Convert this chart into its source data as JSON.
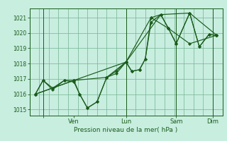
{
  "bg_color": "#c8eee0",
  "grid_color": "#7ab898",
  "line_color": "#1a5c1a",
  "marker_color": "#1a5c1a",
  "xlabel": "Pression niveau de la mer( hPa )",
  "ylim": [
    1014.6,
    1021.6
  ],
  "yticks": [
    1015,
    1016,
    1017,
    1018,
    1019,
    1020,
    1021
  ],
  "xlim": [
    0,
    100
  ],
  "xtick_positions": [
    7,
    23,
    50,
    76,
    95
  ],
  "xtick_labels": [
    "",
    "Ven",
    "Lun",
    "Sam",
    "Dim"
  ],
  "series": [
    [
      3,
      1016.0,
      7,
      1016.9,
      12,
      1016.4,
      18,
      1016.9,
      23,
      1016.8,
      26,
      1016.0,
      30,
      1015.1,
      35,
      1015.5,
      40,
      1017.1,
      45,
      1017.5,
      50,
      1018.1,
      53,
      1017.5,
      57,
      1017.6,
      60,
      1018.3,
      63,
      1021.0,
      68,
      1021.2,
      72,
      1020.3,
      76,
      1019.3,
      83,
      1021.3,
      88,
      1019.1,
      93,
      1019.9,
      97,
      1019.85
    ],
    [
      3,
      1016.0,
      7,
      1016.9,
      12,
      1016.3,
      18,
      1016.9,
      23,
      1016.9,
      26,
      1016.0,
      30,
      1015.1,
      35,
      1015.5,
      40,
      1017.1,
      45,
      1017.35,
      50,
      1018.1,
      53,
      1017.5,
      57,
      1017.6,
      60,
      1018.3,
      63,
      1020.7,
      68,
      1021.2,
      72,
      1020.3,
      76,
      1019.3,
      83,
      1021.3,
      88,
      1019.1,
      93,
      1019.9,
      97,
      1019.85
    ],
    [
      3,
      1016.0,
      23,
      1016.9,
      50,
      1018.1,
      68,
      1021.2,
      83,
      1021.3,
      97,
      1019.85
    ],
    [
      3,
      1016.0,
      23,
      1016.9,
      40,
      1017.1,
      50,
      1018.1,
      63,
      1021.0,
      72,
      1020.3,
      83,
      1019.3,
      97,
      1019.85
    ]
  ],
  "vline_positions": [
    7,
    50,
    76,
    95
  ]
}
